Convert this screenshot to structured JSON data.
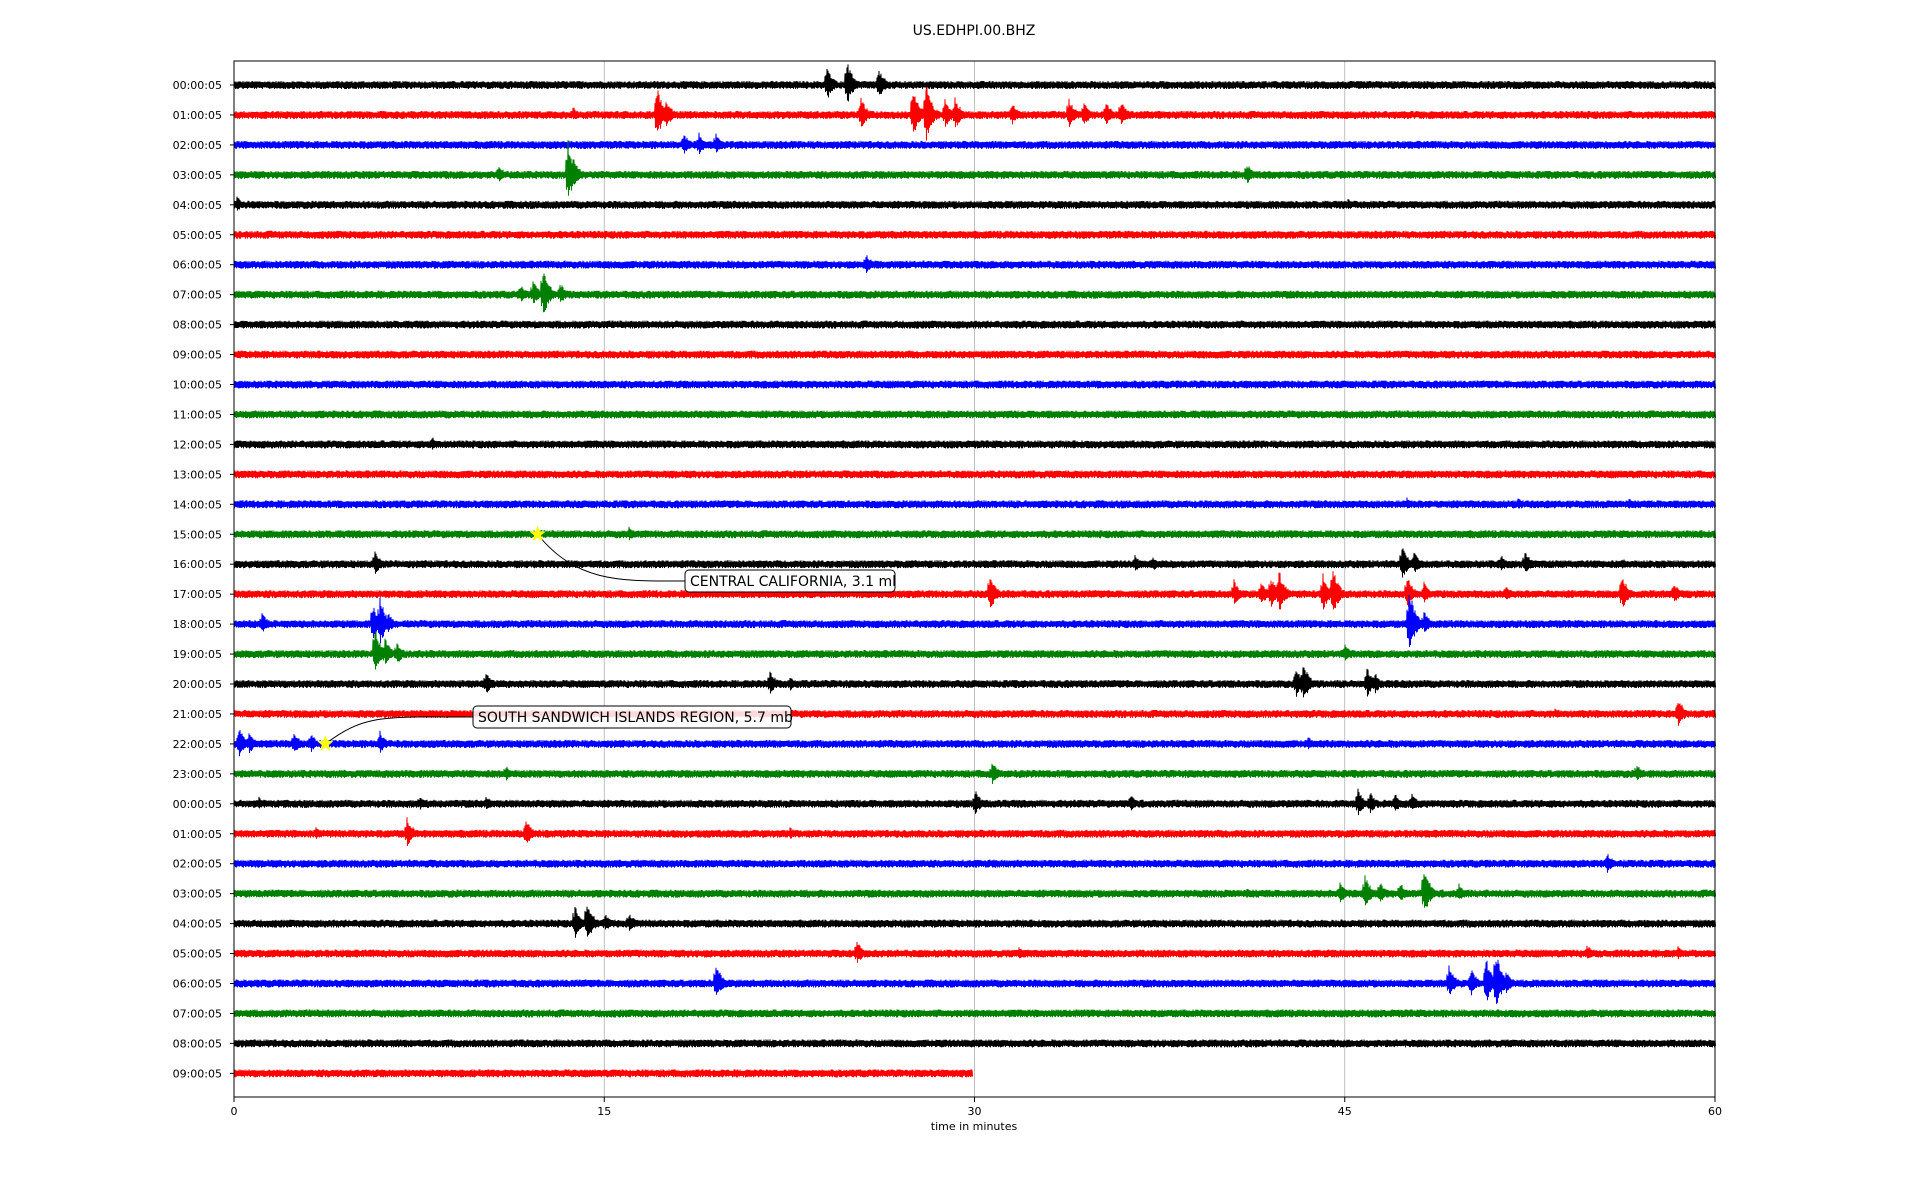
{
  "chart_data": {
    "type": "line",
    "title": "US.EDHPI.00.BHZ",
    "xlabel": "time in minutes",
    "ylabel": "",
    "xlim": [
      0,
      60
    ],
    "x_ticks": [
      "0",
      "15",
      "30",
      "45",
      "60"
    ],
    "x_tick_values": [
      0,
      15,
      30,
      45,
      60
    ],
    "grid": "vertical",
    "colors": [
      "#000000",
      "#ff0000",
      "#0000ff",
      "#008000"
    ],
    "rows": [
      {
        "label": "00:00:05",
        "end": 60,
        "events": [
          [
            24.0,
            22
          ],
          [
            24.8,
            30
          ],
          [
            26.1,
            20
          ]
        ]
      },
      {
        "label": "01:00:05",
        "end": 60,
        "events": [
          [
            13.7,
            10
          ],
          [
            17.1,
            36
          ],
          [
            17.5,
            18
          ],
          [
            25.4,
            20
          ],
          [
            27.5,
            32
          ],
          [
            28.0,
            40
          ],
          [
            28.8,
            18
          ],
          [
            29.2,
            20
          ],
          [
            31.5,
            14
          ],
          [
            33.8,
            20
          ],
          [
            34.4,
            18
          ],
          [
            35.3,
            16
          ],
          [
            35.9,
            18
          ]
        ]
      },
      {
        "label": "02:00:05",
        "end": 60,
        "events": [
          [
            18.2,
            14
          ],
          [
            18.8,
            16
          ],
          [
            19.5,
            14
          ]
        ]
      },
      {
        "label": "03:00:05",
        "end": 60,
        "events": [
          [
            10.7,
            12
          ],
          [
            13.5,
            40
          ],
          [
            13.7,
            22
          ],
          [
            41.0,
            14
          ]
        ]
      },
      {
        "label": "04:00:05",
        "end": 60,
        "events": [
          [
            0.1,
            10
          ],
          [
            45.1,
            8
          ]
        ]
      },
      {
        "label": "05:00:05",
        "end": 60,
        "events": []
      },
      {
        "label": "06:00:05",
        "end": 60,
        "events": [
          [
            20.0,
            6
          ],
          [
            25.6,
            12
          ]
        ]
      },
      {
        "label": "07:00:05",
        "end": 60,
        "events": [
          [
            11.6,
            12
          ],
          [
            12.1,
            16
          ],
          [
            12.5,
            32
          ],
          [
            13.2,
            14
          ]
        ]
      },
      {
        "label": "08:00:05",
        "end": 60,
        "events": []
      },
      {
        "label": "09:00:05",
        "end": 60,
        "events": []
      },
      {
        "label": "10:00:05",
        "end": 60,
        "events": []
      },
      {
        "label": "11:00:05",
        "end": 60,
        "events": []
      },
      {
        "label": "12:00:05",
        "end": 60,
        "events": [
          [
            8.0,
            10
          ],
          [
            52.0,
            6
          ]
        ]
      },
      {
        "label": "13:00:05",
        "end": 60,
        "events": []
      },
      {
        "label": "14:00:05",
        "end": 60,
        "events": [
          [
            47.5,
            8
          ],
          [
            52.0,
            8
          ],
          [
            56.5,
            8
          ]
        ]
      },
      {
        "label": "15:00:05",
        "end": 60,
        "events": [
          [
            16.0,
            8
          ]
        ]
      },
      {
        "label": "16:00:05",
        "end": 60,
        "events": [
          [
            5.7,
            14
          ],
          [
            36.5,
            10
          ],
          [
            37.2,
            10
          ],
          [
            47.3,
            22
          ],
          [
            47.8,
            14
          ],
          [
            51.3,
            12
          ],
          [
            52.3,
            14
          ],
          [
            56.2,
            8
          ]
        ]
      },
      {
        "label": "17:00:05",
        "end": 60,
        "events": [
          [
            30.6,
            24
          ],
          [
            40.5,
            16
          ],
          [
            41.6,
            16
          ],
          [
            42.0,
            20
          ],
          [
            42.3,
            30
          ],
          [
            44.1,
            24
          ],
          [
            44.5,
            30
          ],
          [
            47.5,
            22
          ],
          [
            48.2,
            14
          ],
          [
            51.5,
            12
          ],
          [
            56.2,
            24
          ],
          [
            58.3,
            14
          ]
        ]
      },
      {
        "label": "18:00:05",
        "end": 60,
        "events": [
          [
            1.1,
            14
          ],
          [
            5.6,
            24
          ],
          [
            5.9,
            30
          ],
          [
            6.2,
            14
          ],
          [
            47.6,
            40
          ],
          [
            48.2,
            14
          ]
        ]
      },
      {
        "label": "19:00:05",
        "end": 60,
        "events": [
          [
            5.7,
            30
          ],
          [
            6.1,
            18
          ],
          [
            6.6,
            14
          ],
          [
            45.0,
            12
          ]
        ]
      },
      {
        "label": "20:00:05",
        "end": 60,
        "events": [
          [
            10.2,
            14
          ],
          [
            21.7,
            16
          ],
          [
            22.5,
            10
          ],
          [
            43.0,
            20
          ],
          [
            43.3,
            26
          ],
          [
            45.9,
            18
          ],
          [
            46.2,
            14
          ]
        ]
      },
      {
        "label": "21:00:05",
        "end": 60,
        "events": [
          [
            53.5,
            6
          ],
          [
            58.5,
            18
          ]
        ]
      },
      {
        "label": "22:00:05",
        "end": 60,
        "events": [
          [
            0.2,
            18
          ],
          [
            0.6,
            14
          ],
          [
            2.4,
            16
          ],
          [
            3.1,
            12
          ],
          [
            5.9,
            14
          ],
          [
            43.5,
            8
          ]
        ]
      },
      {
        "label": "23:00:05",
        "end": 60,
        "events": [
          [
            11.0,
            10
          ],
          [
            30.7,
            14
          ],
          [
            56.8,
            12
          ]
        ]
      },
      {
        "label": "00:00:05",
        "end": 60,
        "events": [
          [
            1.0,
            8
          ],
          [
            7.5,
            10
          ],
          [
            10.2,
            10
          ],
          [
            30.0,
            16
          ],
          [
            36.3,
            12
          ],
          [
            45.5,
            18
          ],
          [
            46.0,
            14
          ],
          [
            47.0,
            14
          ],
          [
            47.7,
            12
          ]
        ]
      },
      {
        "label": "01:00:05",
        "end": 60,
        "events": [
          [
            3.3,
            8
          ],
          [
            7.0,
            18
          ],
          [
            11.8,
            18
          ],
          [
            22.5,
            8
          ]
        ]
      },
      {
        "label": "02:00:05",
        "end": 60,
        "events": [
          [
            55.6,
            14
          ]
        ]
      },
      {
        "label": "03:00:05",
        "end": 60,
        "events": [
          [
            41.0,
            8
          ],
          [
            44.8,
            14
          ],
          [
            45.8,
            22
          ],
          [
            46.4,
            14
          ],
          [
            47.2,
            14
          ],
          [
            48.2,
            30
          ],
          [
            49.6,
            12
          ]
        ]
      },
      {
        "label": "04:00:05",
        "end": 60,
        "events": [
          [
            13.8,
            22
          ],
          [
            14.3,
            26
          ],
          [
            15.0,
            12
          ],
          [
            16.0,
            12
          ]
        ]
      },
      {
        "label": "05:00:05",
        "end": 60,
        "events": [
          [
            25.2,
            16
          ],
          [
            31.8,
            8
          ],
          [
            54.8,
            10
          ],
          [
            58.5,
            8
          ]
        ]
      },
      {
        "label": "06:00:05",
        "end": 60,
        "events": [
          [
            19.5,
            24
          ],
          [
            49.2,
            22
          ],
          [
            50.1,
            18
          ],
          [
            50.7,
            30
          ],
          [
            51.1,
            40
          ],
          [
            51.5,
            16
          ]
        ]
      },
      {
        "label": "07:00:05",
        "end": 60,
        "events": []
      },
      {
        "label": "08:00:05",
        "end": 60,
        "events": []
      },
      {
        "label": "09:00:05",
        "end": 29.9,
        "events": []
      }
    ],
    "annotations": [
      {
        "text": "CENTRAL CALIFORNIA, 3.1 ml",
        "row": 15,
        "x": 12.3
      },
      {
        "text": "SOUTH SANDWICH ISLANDS REGION, 5.7 mb",
        "row": 22,
        "x": 3.7
      }
    ]
  }
}
